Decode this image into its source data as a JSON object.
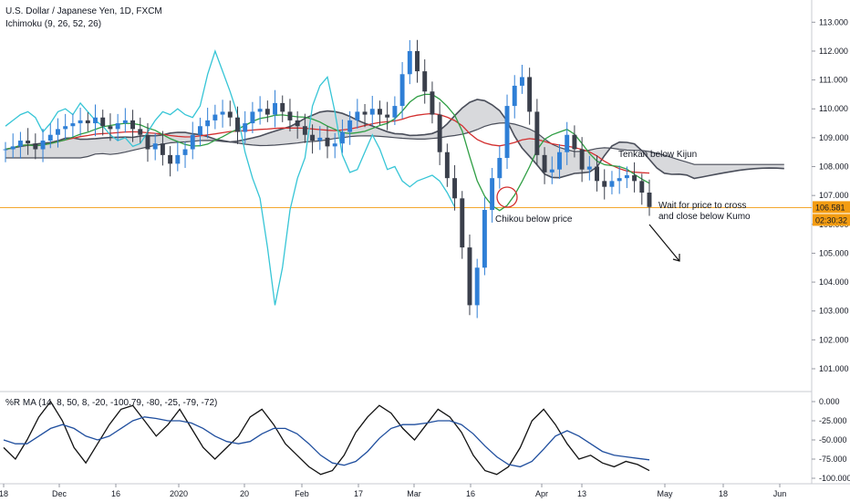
{
  "header": {
    "title": "U.S. Dollar / Japanese Yen, 1D, FXCM",
    "indicator": "Ichimoku (9, 26, 52, 26)"
  },
  "oscillator": {
    "label": "%R MA (14, 8, 50, 8, -20, -100.79, -80, -25, -79, -72)",
    "ticks": [
      "0.000",
      "-25.000",
      "-50.000",
      "-75.000",
      "-100.000"
    ]
  },
  "price_axis": {
    "ticks": [
      "113.000",
      "112.000",
      "111.000",
      "110.000",
      "109.000",
      "108.000",
      "107.000",
      "106.000",
      "105.000",
      "104.000",
      "103.000",
      "102.000",
      "101.000"
    ],
    "last_price": "106.581",
    "countdown": "02:30:32"
  },
  "time_axis": {
    "labels": [
      "18",
      "Dec",
      "16",
      "2020",
      "20",
      "Feb",
      "17",
      "Mar",
      "16",
      "Apr",
      "13",
      "May",
      "18",
      "Jun"
    ]
  },
  "annotations": {
    "tenkan": "Tenkan below Kijun",
    "chikou": "Chikou below price",
    "wait_line1": "Wait for price to cross",
    "wait_line2": "and close below Kumo"
  },
  "colors": {
    "bull_candle": "#2f7fd6",
    "bear_candle": "#3a3f4b",
    "tenkan": "#2f9e44",
    "kijun": "#d32f2f",
    "chikou": "#36c5d6",
    "cloud_fill": "#d8d9dc",
    "cloud_edge": "#4a4e5a",
    "wr_line": "#111111",
    "wr_ma": "#1f4e9e",
    "price_label": "#f39c12"
  },
  "chart_data": [
    {
      "type": "candlestick",
      "symbol": "USDJPY",
      "timeframe": "1D",
      "ylim": [
        101,
        113.2
      ],
      "last_price": 106.581,
      "close_series": [
        108.6,
        108.7,
        108.9,
        108.8,
        108.6,
        108.9,
        109.1,
        109.3,
        109.4,
        109.5,
        109.6,
        109.5,
        109.7,
        109.4,
        109.3,
        109.5,
        109.6,
        109.3,
        109.1,
        108.6,
        108.8,
        108.4,
        108.1,
        108.4,
        108.6,
        109.1,
        109.4,
        109.6,
        109.8,
        109.9,
        109.7,
        109.2,
        109.5,
        109.9,
        110.0,
        109.8,
        110.2,
        109.9,
        109.6,
        109.4,
        109.1,
        108.9,
        109.0,
        108.7,
        108.8,
        109.2,
        109.6,
        109.9,
        109.8,
        110.0,
        109.8,
        109.7,
        110.1,
        111.2,
        112.0,
        111.3,
        110.6,
        109.8,
        108.5,
        107.6,
        106.9,
        105.2,
        103.2,
        104.5,
        106.5,
        107.6,
        108.3,
        110.1,
        110.8,
        111.1,
        109.9,
        108.4,
        107.8,
        107.9,
        108.5,
        109.1,
        108.6,
        107.9,
        108.0,
        107.5,
        107.3,
        107.5,
        107.6,
        107.7,
        107.5,
        107.1,
        106.6
      ],
      "tenkan_range": [
        107.2,
        111.1
      ],
      "kijun_range": [
        106.6,
        110.1
      ],
      "cloud_range": [
        105.8,
        110.4
      ]
    },
    {
      "type": "line",
      "title": "%R MA",
      "ylim": [
        -100,
        0
      ],
      "series": [
        {
          "values": [
            -60,
            -75,
            -50,
            -20,
            0,
            -25,
            -60,
            -80,
            -55,
            -30,
            -10,
            -5,
            -25,
            -45,
            -30,
            -10,
            -35,
            -60,
            -75,
            -60,
            -45,
            -20,
            -10,
            -30,
            -55,
            -70,
            -85,
            -95,
            -90,
            -70,
            -40,
            -20,
            -5,
            -15,
            -35,
            -50,
            -30,
            -10,
            -20,
            -40,
            -70,
            -90,
            -95,
            -85,
            -60,
            -25,
            -10,
            -30,
            -55,
            -75,
            -70,
            -80,
            -85,
            -78,
            -82,
            -90
          ]
        },
        {
          "values": [
            -50,
            -55,
            -55,
            -45,
            -35,
            -30,
            -35,
            -45,
            -50,
            -45,
            -35,
            -25,
            -20,
            -22,
            -25,
            -25,
            -28,
            -35,
            -45,
            -52,
            -55,
            -52,
            -42,
            -35,
            -35,
            -42,
            -55,
            -70,
            -80,
            -83,
            -78,
            -65,
            -48,
            -35,
            -30,
            -30,
            -28,
            -25,
            -25,
            -30,
            -42,
            -58,
            -72,
            -82,
            -85,
            -78,
            -62,
            -45,
            -38,
            -45,
            -55,
            -65,
            -70,
            -72,
            -74,
            -76
          ]
        }
      ]
    }
  ]
}
